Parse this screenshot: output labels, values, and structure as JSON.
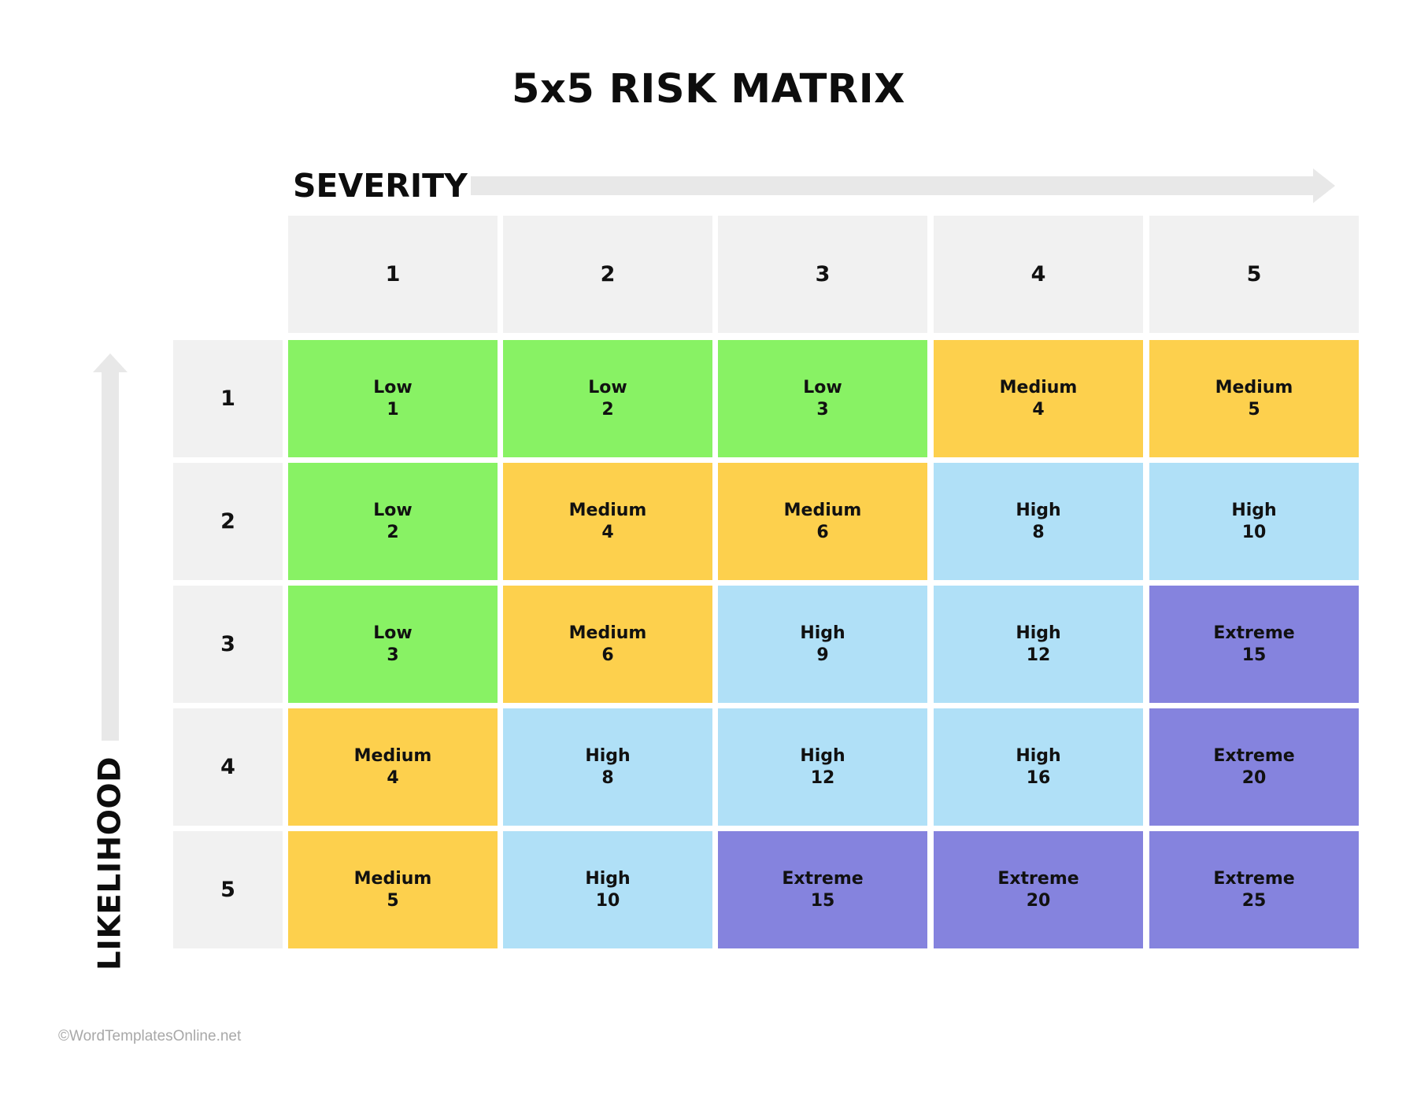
{
  "title": "5x5 RISK MATRIX",
  "severity_label": "SEVERITY",
  "likelihood_label": "LIKELIHOOD",
  "watermark": "©WordTemplatesOnline.net",
  "severity_levels": [
    "1",
    "2",
    "3",
    "4",
    "5"
  ],
  "likelihood_levels": [
    "1",
    "2",
    "3",
    "4",
    "5"
  ],
  "colors": {
    "Low": "#88f264",
    "Medium": "#fdd04d",
    "High": "#b0e0f7",
    "Extreme": "#8583de",
    "header_bg": "#f1f1f1",
    "arrow": "#e8e8e8"
  },
  "matrix": [
    [
      {
        "level": "Low",
        "score": "1"
      },
      {
        "level": "Low",
        "score": "2"
      },
      {
        "level": "Low",
        "score": "3"
      },
      {
        "level": "Medium",
        "score": "4"
      },
      {
        "level": "Medium",
        "score": "5"
      }
    ],
    [
      {
        "level": "Low",
        "score": "2"
      },
      {
        "level": "Medium",
        "score": "4"
      },
      {
        "level": "Medium",
        "score": "6"
      },
      {
        "level": "High",
        "score": "8"
      },
      {
        "level": "High",
        "score": "10"
      }
    ],
    [
      {
        "level": "Low",
        "score": "3"
      },
      {
        "level": "Medium",
        "score": "6"
      },
      {
        "level": "High",
        "score": "9"
      },
      {
        "level": "High",
        "score": "12"
      },
      {
        "level": "Extreme",
        "score": "15"
      }
    ],
    [
      {
        "level": "Medium",
        "score": "4"
      },
      {
        "level": "High",
        "score": "8"
      },
      {
        "level": "High",
        "score": "12"
      },
      {
        "level": "High",
        "score": "16"
      },
      {
        "level": "Extreme",
        "score": "20"
      }
    ],
    [
      {
        "level": "Medium",
        "score": "5"
      },
      {
        "level": "High",
        "score": "10"
      },
      {
        "level": "Extreme",
        "score": "15"
      },
      {
        "level": "Extreme",
        "score": "20"
      },
      {
        "level": "Extreme",
        "score": "25"
      }
    ]
  ]
}
